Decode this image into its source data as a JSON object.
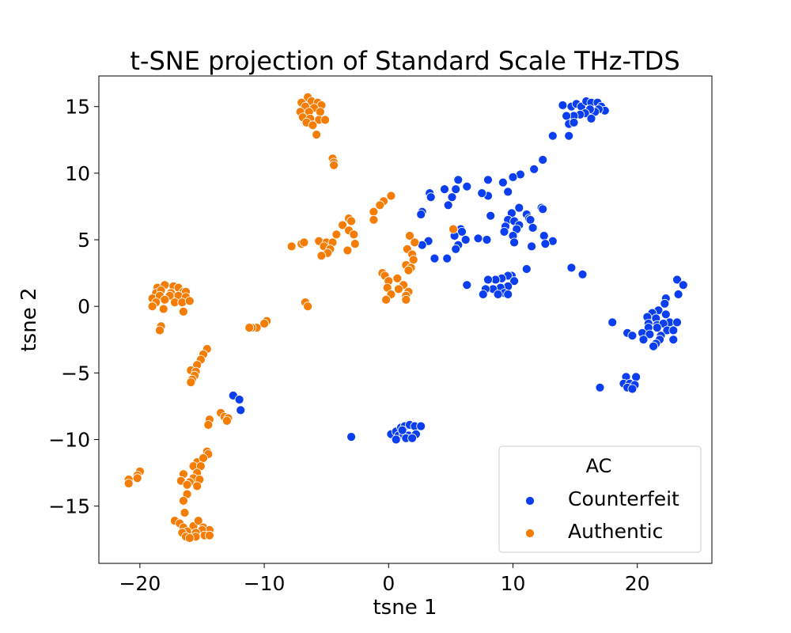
{
  "chart_data": {
    "type": "scatter",
    "title": "t-SNE projection of Standard Scale THz-TDS",
    "xlabel": "tsne 1",
    "ylabel": "tsne 2",
    "xlim": [
      -23.3,
      26.0
    ],
    "ylim": [
      -19.3,
      17.3
    ],
    "xticks": [
      -20,
      -10,
      0,
      10,
      20
    ],
    "yticks": [
      -15,
      -10,
      -5,
      0,
      5,
      10,
      15
    ],
    "xtick_labels": [
      "−20",
      "−10",
      "0",
      "10",
      "20"
    ],
    "ytick_labels": [
      "−15",
      "−10",
      "−5",
      "0",
      "5",
      "10",
      "15"
    ],
    "grid": false,
    "legend": {
      "title": "AC",
      "position": "lower-right",
      "entries": [
        "Counterfeit",
        "Authentic"
      ]
    },
    "series": [
      {
        "name": "Counterfeit",
        "color": "#0b3ef0",
        "points": [
          [
            14.0,
            15.1
          ],
          [
            14.7,
            15.0
          ],
          [
            15.1,
            15.2
          ],
          [
            15.5,
            15.0
          ],
          [
            15.9,
            15.4
          ],
          [
            16.3,
            15.3
          ],
          [
            16.8,
            15.3
          ],
          [
            17.1,
            15.0
          ],
          [
            17.4,
            14.7
          ],
          [
            16.9,
            14.8
          ],
          [
            16.6,
            14.6
          ],
          [
            16.2,
            14.8
          ],
          [
            15.8,
            14.5
          ],
          [
            15.4,
            14.4
          ],
          [
            14.9,
            14.3
          ],
          [
            14.3,
            14.3
          ],
          [
            14.5,
            13.7
          ],
          [
            14.9,
            13.8
          ],
          [
            16.3,
            14.1
          ],
          [
            14.5,
            12.8
          ],
          [
            13.2,
            12.8
          ],
          [
            12.4,
            11.0
          ],
          [
            11.7,
            10.3
          ],
          [
            10.6,
            9.9
          ],
          [
            10.0,
            9.7
          ],
          [
            9.2,
            9.3
          ],
          [
            9.6,
            8.6
          ],
          [
            8.0,
            9.5
          ],
          [
            8.0,
            8.3
          ],
          [
            7.5,
            8.5
          ],
          [
            6.3,
            9.0
          ],
          [
            5.6,
            9.5
          ],
          [
            5.4,
            8.8
          ],
          [
            4.5,
            8.8
          ],
          [
            5.1,
            8.2
          ],
          [
            4.8,
            7.6
          ],
          [
            3.3,
            8.5
          ],
          [
            3.4,
            8.2
          ],
          [
            2.7,
            7.1
          ],
          [
            2.6,
            6.9
          ],
          [
            9.9,
            7.0
          ],
          [
            10.5,
            7.4
          ],
          [
            11.1,
            6.9
          ],
          [
            11.3,
            6.6
          ],
          [
            12.3,
            7.4
          ],
          [
            12.4,
            7.3
          ],
          [
            8.2,
            6.8
          ],
          [
            9.6,
            6.5
          ],
          [
            10.1,
            6.4
          ],
          [
            10.5,
            6.1
          ],
          [
            11.4,
            6.5
          ],
          [
            9.4,
            6.0
          ],
          [
            10.3,
            5.8
          ],
          [
            11.6,
            5.9
          ],
          [
            9.3,
            5.6
          ],
          [
            10.0,
            5.3
          ],
          [
            12.5,
            5.3
          ],
          [
            13.2,
            4.9
          ],
          [
            7.2,
            5.1
          ],
          [
            7.9,
            5.0
          ],
          [
            5.8,
            5.8
          ],
          [
            5.9,
            5.6
          ],
          [
            5.3,
            5.3
          ],
          [
            6.2,
            5.0
          ],
          [
            5.6,
            4.6
          ],
          [
            5.4,
            4.3
          ],
          [
            3.2,
            4.9
          ],
          [
            2.7,
            4.6
          ],
          [
            10.1,
            4.8
          ],
          [
            11.5,
            4.5
          ],
          [
            12.6,
            4.7
          ],
          [
            4.7,
            3.6
          ],
          [
            3.7,
            3.6
          ],
          [
            14.7,
            2.9
          ],
          [
            11.1,
            2.8
          ],
          [
            15.6,
            2.4
          ],
          [
            9.9,
            2.3
          ],
          [
            9.6,
            2.3
          ],
          [
            9.1,
            2.1
          ],
          [
            8.6,
            2.0
          ],
          [
            8.0,
            2.0
          ],
          [
            10.1,
            1.9
          ],
          [
            6.3,
            1.6
          ],
          [
            9.6,
            1.5
          ],
          [
            9.0,
            1.4
          ],
          [
            8.4,
            1.3
          ],
          [
            7.8,
            1.3
          ],
          [
            9.3,
            1.0
          ],
          [
            9.6,
            0.9
          ],
          [
            8.8,
            0.9
          ],
          [
            7.6,
            0.9
          ],
          [
            23.2,
            2.0
          ],
          [
            23.7,
            1.6
          ],
          [
            23.3,
            0.9
          ],
          [
            22.3,
            0.6
          ],
          [
            22.2,
            0.2
          ],
          [
            21.7,
            -0.3
          ],
          [
            21.2,
            -0.5
          ],
          [
            22.3,
            -0.6
          ],
          [
            20.8,
            -0.8
          ],
          [
            21.5,
            -0.9
          ],
          [
            22.6,
            -1.2
          ],
          [
            23.2,
            -1.2
          ],
          [
            20.9,
            -1.3
          ],
          [
            21.6,
            -1.4
          ],
          [
            22.1,
            -1.3
          ],
          [
            20.9,
            -1.6
          ],
          [
            21.6,
            -1.6
          ],
          [
            22.4,
            -1.8
          ],
          [
            22.9,
            -1.8
          ],
          [
            19.2,
            -2.0
          ],
          [
            19.6,
            -2.2
          ],
          [
            20.4,
            -2.0
          ],
          [
            21.0,
            -2.1
          ],
          [
            21.9,
            -2.2
          ],
          [
            20.5,
            -2.5
          ],
          [
            21.8,
            -2.5
          ],
          [
            22.9,
            -2.5
          ],
          [
            21.5,
            -2.8
          ],
          [
            21.3,
            -3.0
          ],
          [
            18.0,
            -1.2
          ],
          [
            19.1,
            -5.3
          ],
          [
            19.9,
            -5.3
          ],
          [
            18.9,
            -5.8
          ],
          [
            19.4,
            -5.8
          ],
          [
            19.8,
            -5.9
          ],
          [
            19.2,
            -6.1
          ],
          [
            19.6,
            -6.2
          ],
          [
            17.0,
            -6.1
          ],
          [
            -12.5,
            -6.7
          ],
          [
            -12.0,
            -7.0
          ],
          [
            -11.9,
            -7.8
          ],
          [
            -3.0,
            -9.8
          ],
          [
            0.2,
            -9.6
          ],
          [
            0.6,
            -9.4
          ],
          [
            1.0,
            -9.1
          ],
          [
            1.3,
            -9.0
          ],
          [
            1.7,
            -8.9
          ],
          [
            2.1,
            -9.0
          ],
          [
            2.6,
            -9.0
          ],
          [
            0.8,
            -9.7
          ],
          [
            1.2,
            -9.6
          ],
          [
            1.6,
            -9.7
          ],
          [
            2.2,
            -9.6
          ],
          [
            0.6,
            -10.0
          ],
          [
            1.4,
            -9.9
          ],
          [
            1.9,
            -9.9
          ],
          [
            1.1,
            -9.3
          ]
        ]
      },
      {
        "name": "Authentic",
        "color": "#f57c05",
        "points": [
          [
            -6.5,
            15.7
          ],
          [
            -7.0,
            15.3
          ],
          [
            -6.2,
            15.4
          ],
          [
            -5.7,
            15.3
          ],
          [
            -5.4,
            15.1
          ],
          [
            -6.7,
            15.0
          ],
          [
            -6.0,
            14.9
          ],
          [
            -7.1,
            14.6
          ],
          [
            -6.4,
            14.6
          ],
          [
            -5.5,
            14.6
          ],
          [
            -6.9,
            14.2
          ],
          [
            -6.3,
            14.1
          ],
          [
            -5.6,
            14.0
          ],
          [
            -5.1,
            14.0
          ],
          [
            -6.6,
            13.8
          ],
          [
            -6.1,
            13.6
          ],
          [
            -5.8,
            12.9
          ],
          [
            -4.5,
            11.1
          ],
          [
            -4.4,
            10.8
          ],
          [
            -4.4,
            10.6
          ],
          [
            0.2,
            8.3
          ],
          [
            -0.4,
            7.9
          ],
          [
            -0.7,
            7.6
          ],
          [
            -1.2,
            7.1
          ],
          [
            -3.2,
            6.6
          ],
          [
            -3.0,
            6.4
          ],
          [
            -3.7,
            6.1
          ],
          [
            -3.2,
            5.7
          ],
          [
            -2.8,
            5.4
          ],
          [
            -4.2,
            5.4
          ],
          [
            -1.2,
            6.5
          ],
          [
            -7.8,
            4.5
          ],
          [
            -7.0,
            4.7
          ],
          [
            -6.8,
            4.8
          ],
          [
            -5.6,
            4.9
          ],
          [
            -5.0,
            4.8
          ],
          [
            -4.5,
            4.8
          ],
          [
            -5.2,
            4.5
          ],
          [
            -4.7,
            4.3
          ],
          [
            -4.9,
            4.0
          ],
          [
            -5.4,
            3.8
          ],
          [
            -3.3,
            4.2
          ],
          [
            -2.7,
            4.7
          ],
          [
            1.7,
            5.3
          ],
          [
            2.1,
            4.8
          ],
          [
            5.2,
            5.8
          ],
          [
            1.5,
            4.3
          ],
          [
            1.9,
            3.9
          ],
          [
            2.0,
            3.5
          ],
          [
            1.4,
            3.1
          ],
          [
            1.8,
            2.9
          ],
          [
            1.6,
            2.7
          ],
          [
            -0.5,
            2.5
          ],
          [
            -0.3,
            2.3
          ],
          [
            0.7,
            2.1
          ],
          [
            0.0,
            1.9
          ],
          [
            -0.1,
            1.4
          ],
          [
            1.2,
            1.6
          ],
          [
            0.8,
            1.3
          ],
          [
            1.6,
            1.1
          ],
          [
            0.2,
            0.9
          ],
          [
            1.4,
            0.8
          ],
          [
            -0.2,
            0.5
          ],
          [
            1.4,
            0.5
          ],
          [
            -18.6,
            1.4
          ],
          [
            -18.0,
            1.6
          ],
          [
            -17.3,
            1.5
          ],
          [
            -16.9,
            1.4
          ],
          [
            -18.7,
            1.0
          ],
          [
            -18.3,
            1.2
          ],
          [
            -17.5,
            1.0
          ],
          [
            -16.5,
            1.1
          ],
          [
            -16.3,
            1.1
          ],
          [
            -19.0,
            0.6
          ],
          [
            -18.4,
            0.8
          ],
          [
            -17.6,
            0.8
          ],
          [
            -16.9,
            0.8
          ],
          [
            -16.3,
            0.7
          ],
          [
            -18.7,
            0.3
          ],
          [
            -18.0,
            0.5
          ],
          [
            -17.2,
            0.3
          ],
          [
            -16.6,
            0.3
          ],
          [
            -19.0,
            0.0
          ],
          [
            -16.0,
            0.4
          ],
          [
            -18.1,
            -0.2
          ],
          [
            -16.5,
            -0.4
          ],
          [
            -18.3,
            -1.5
          ],
          [
            -18.4,
            -1.8
          ],
          [
            -6.7,
            0.3
          ],
          [
            -6.5,
            0.0
          ],
          [
            -9.8,
            -1.1
          ],
          [
            -10.0,
            -1.3
          ],
          [
            -10.6,
            -1.6
          ],
          [
            -11.0,
            -1.6
          ],
          [
            -11.2,
            -1.6
          ],
          [
            -14.6,
            -3.2
          ],
          [
            -14.9,
            -3.6
          ],
          [
            -15.1,
            -4.0
          ],
          [
            -15.4,
            -4.4
          ],
          [
            -15.9,
            -4.8
          ],
          [
            -15.5,
            -4.9
          ],
          [
            -15.6,
            -5.2
          ],
          [
            -15.8,
            -5.5
          ],
          [
            -15.9,
            -5.7
          ],
          [
            -13.5,
            -8.0
          ],
          [
            -13.2,
            -8.3
          ],
          [
            -12.9,
            -8.4
          ],
          [
            -13.0,
            -8.6
          ],
          [
            -14.4,
            -8.5
          ],
          [
            -14.5,
            -8.9
          ],
          [
            -14.6,
            -10.9
          ],
          [
            -14.5,
            -11.1
          ],
          [
            -15.4,
            -11.7
          ],
          [
            -14.9,
            -11.4
          ],
          [
            -15.7,
            -12.0
          ],
          [
            -15.1,
            -12.0
          ],
          [
            -16.5,
            -12.6
          ],
          [
            -15.4,
            -12.5
          ],
          [
            -15.7,
            -12.9
          ],
          [
            -16.7,
            -13.1
          ],
          [
            -16.0,
            -13.2
          ],
          [
            -15.2,
            -13.0
          ],
          [
            -15.4,
            -13.5
          ],
          [
            -16.2,
            -13.4
          ],
          [
            -16.2,
            -14.1
          ],
          [
            -16.5,
            -14.6
          ],
          [
            -16.4,
            -15.5
          ],
          [
            -17.2,
            -16.1
          ],
          [
            -16.8,
            -16.3
          ],
          [
            -16.5,
            -16.6
          ],
          [
            -15.7,
            -16.5
          ],
          [
            -15.3,
            -16.1
          ],
          [
            -14.9,
            -16.6
          ],
          [
            -14.4,
            -16.8
          ],
          [
            -15.0,
            -16.8
          ],
          [
            -16.2,
            -16.9
          ],
          [
            -15.5,
            -17.0
          ],
          [
            -16.6,
            -17.0
          ],
          [
            -16.3,
            -17.3
          ],
          [
            -15.5,
            -17.3
          ],
          [
            -14.8,
            -17.2
          ],
          [
            -14.4,
            -17.2
          ],
          [
            -16.0,
            -17.4
          ],
          [
            -20.0,
            -12.4
          ],
          [
            -20.2,
            -12.7
          ],
          [
            -20.2,
            -12.9
          ],
          [
            -20.9,
            -13.0
          ],
          [
            -20.9,
            -13.3
          ]
        ]
      }
    ]
  }
}
